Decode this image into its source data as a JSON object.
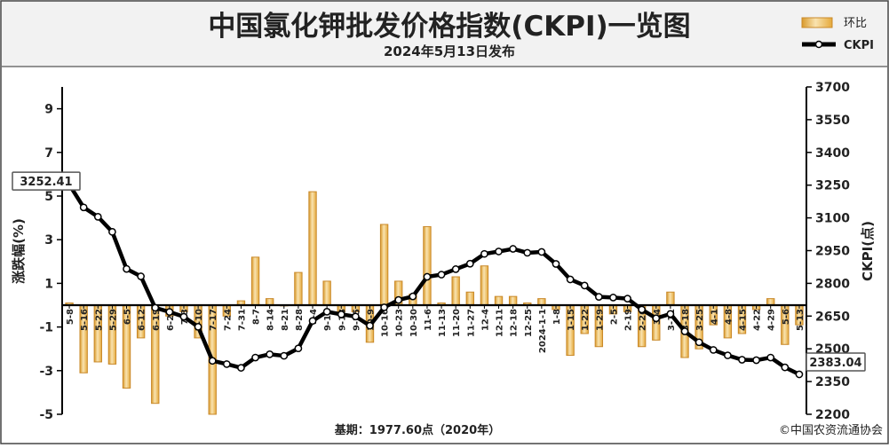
{
  "chart_data": {
    "type": "bar+line",
    "title": "中国氯化钾批发价格指数(CKPI)一览图",
    "subtitle": "2024年5月13日发布",
    "ylabel_left": "涨跌幅(%)",
    "ylabel_right": "CKPI(点)",
    "ylim_left": [
      -5,
      10
    ],
    "yticks_left": [
      9,
      7,
      5,
      3,
      1,
      -1,
      -3,
      -5
    ],
    "ylim_right": [
      2200,
      3700
    ],
    "yticks_right": [
      3700,
      3550,
      3400,
      3250,
      3100,
      2950,
      2800,
      2650,
      2500,
      2350,
      2200
    ],
    "legend": [
      {
        "name": "环比",
        "kind": "bar"
      },
      {
        "name": "CKPI",
        "kind": "line"
      }
    ],
    "legend_position": "top-right",
    "grid": false,
    "footer_left": "基期：1977.60点（2020年）",
    "footer_right": "©中国农资流通协会",
    "x": [
      "5-8",
      "5-16",
      "5-22",
      "5-29",
      "6-5",
      "6-12",
      "6-19",
      "6-26",
      "7-3",
      "7-10",
      "7-17",
      "7-24",
      "7-31",
      "8-7",
      "8-14",
      "8-21",
      "8-28",
      "9-4",
      "9-11",
      "9-18",
      "9-25",
      "10-9",
      "10-16",
      "10-23",
      "10-30",
      "11-6",
      "11-13",
      "11-20",
      "11-27",
      "12-4",
      "12-11",
      "12-18",
      "12-25",
      "2024-1-1",
      "1-8",
      "1-15",
      "1-22",
      "1-29",
      "2-5",
      "2-19",
      "2-26",
      "3-4",
      "3-11",
      "3-18",
      "3-25",
      "4-1",
      "4-8",
      "4-15",
      "4-22",
      "4-29",
      "5-6",
      "5-13"
    ],
    "series": [
      {
        "name": "环比",
        "values": [
          0.1,
          -3.1,
          -2.6,
          -2.7,
          -3.8,
          -1.5,
          -4.5,
          -0.5,
          -0.3,
          -1.5,
          -5.0,
          -0.5,
          0.2,
          2.2,
          0.3,
          0.0,
          1.5,
          5.2,
          1.1,
          -0.3,
          -0.3,
          -1.7,
          3.7,
          1.1,
          0.5,
          3.6,
          0.1,
          1.3,
          0.6,
          1.8,
          0.4,
          0.4,
          0.1,
          0.3,
          -0.2,
          -2.3,
          -1.3,
          -1.9,
          -0.4,
          -0.3,
          -1.9,
          -1.6,
          0.6,
          -2.4,
          -2.0,
          -0.9,
          -1.5,
          -1.3,
          -0.2,
          0.3,
          -1.8,
          -0.9
        ]
      },
      {
        "name": "CKPI",
        "values": [
          3252.41,
          3148,
          3105,
          3036,
          2866,
          2832,
          2688,
          2669,
          2647,
          2601,
          2445,
          2430,
          2413,
          2460,
          2475,
          2468,
          2502,
          2628,
          2670,
          2658,
          2648,
          2606,
          2690,
          2724,
          2740,
          2830,
          2840,
          2865,
          2890,
          2935,
          2946,
          2958,
          2940,
          2944,
          2889,
          2818,
          2790,
          2738,
          2735,
          2730,
          2680,
          2640,
          2660,
          2580,
          2530,
          2495,
          2470,
          2450,
          2448,
          2460,
          2415,
          2383.04
        ]
      }
    ],
    "annotations": [
      {
        "text": "3252.41",
        "series": "CKPI",
        "point": "5-8"
      },
      {
        "text": "2383.04",
        "series": "CKPI",
        "point": "5-13"
      }
    ]
  }
}
